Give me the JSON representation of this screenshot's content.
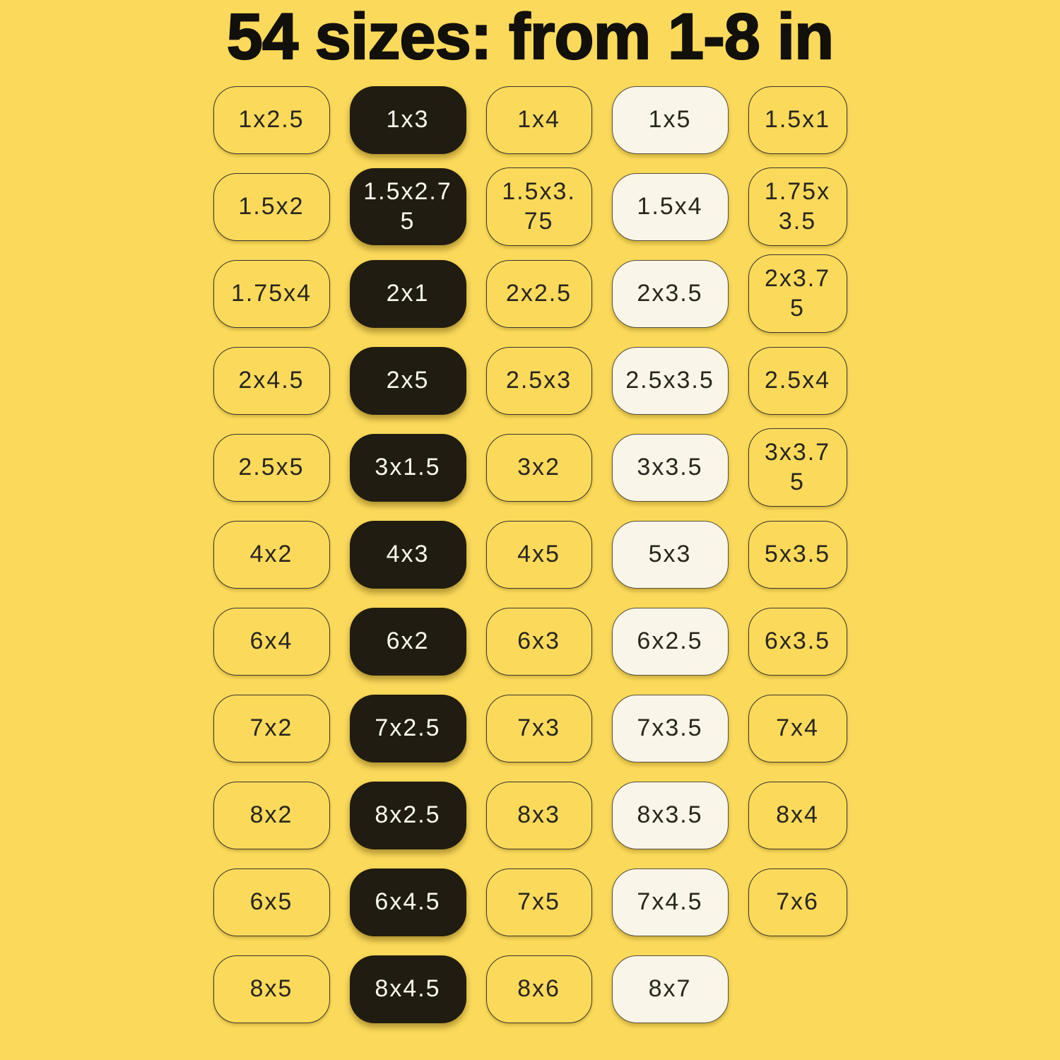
{
  "title": "54 sizes: from 1-8 in",
  "size_count": "54",
  "size_range": "1-8 in",
  "colors": {
    "background": "#FBDA5B",
    "title_ink": "#12100B",
    "badge_ink": "#29261E",
    "badge_outline": "#39342A",
    "badge_dark_fill": "#201C11",
    "badge_dark_text": "#FAF8EF",
    "badge_cream_fill": "#F9F5E8",
    "badge_cream_edge": "#55503F"
  },
  "sizes": {
    "column_styles": [
      "outline",
      "solid-dark",
      "outline",
      "solid-cream",
      "outline"
    ],
    "rows": [
      [
        "1x2.5",
        "1x3",
        "1x4",
        "1x5",
        "1.5x1"
      ],
      [
        "1.5x2",
        "1.5x2.75",
        "1.5x3.75",
        "1.5x4",
        "1.75x3.5"
      ],
      [
        "1.75x4",
        "2x1",
        "2x2.5",
        "2x3.5",
        "2x3.75"
      ],
      [
        "2x4.5",
        "2x5",
        "2.5x3",
        "2.5x3.5",
        "2.5x4"
      ],
      [
        "2.5x5",
        "3x1.5",
        "3x2",
        "3x3.5",
        "3x3.75"
      ],
      [
        "4x2",
        "4x3",
        "4x5",
        "5x3",
        "5x3.5"
      ],
      [
        "6x4",
        "6x2",
        "6x3",
        "6x2.5",
        "6x3.5"
      ],
      [
        "7x2",
        "7x2.5",
        "7x3",
        "7x3.5",
        "7x4"
      ],
      [
        "8x2",
        "8x2.5",
        "8x3",
        "8x3.5",
        "8x4"
      ],
      [
        "6x5",
        "6x4.5",
        "7x5",
        "7x4.5",
        "7x6"
      ],
      [
        "8x5",
        "8x4.5",
        "8x6",
        "8x7"
      ]
    ]
  }
}
